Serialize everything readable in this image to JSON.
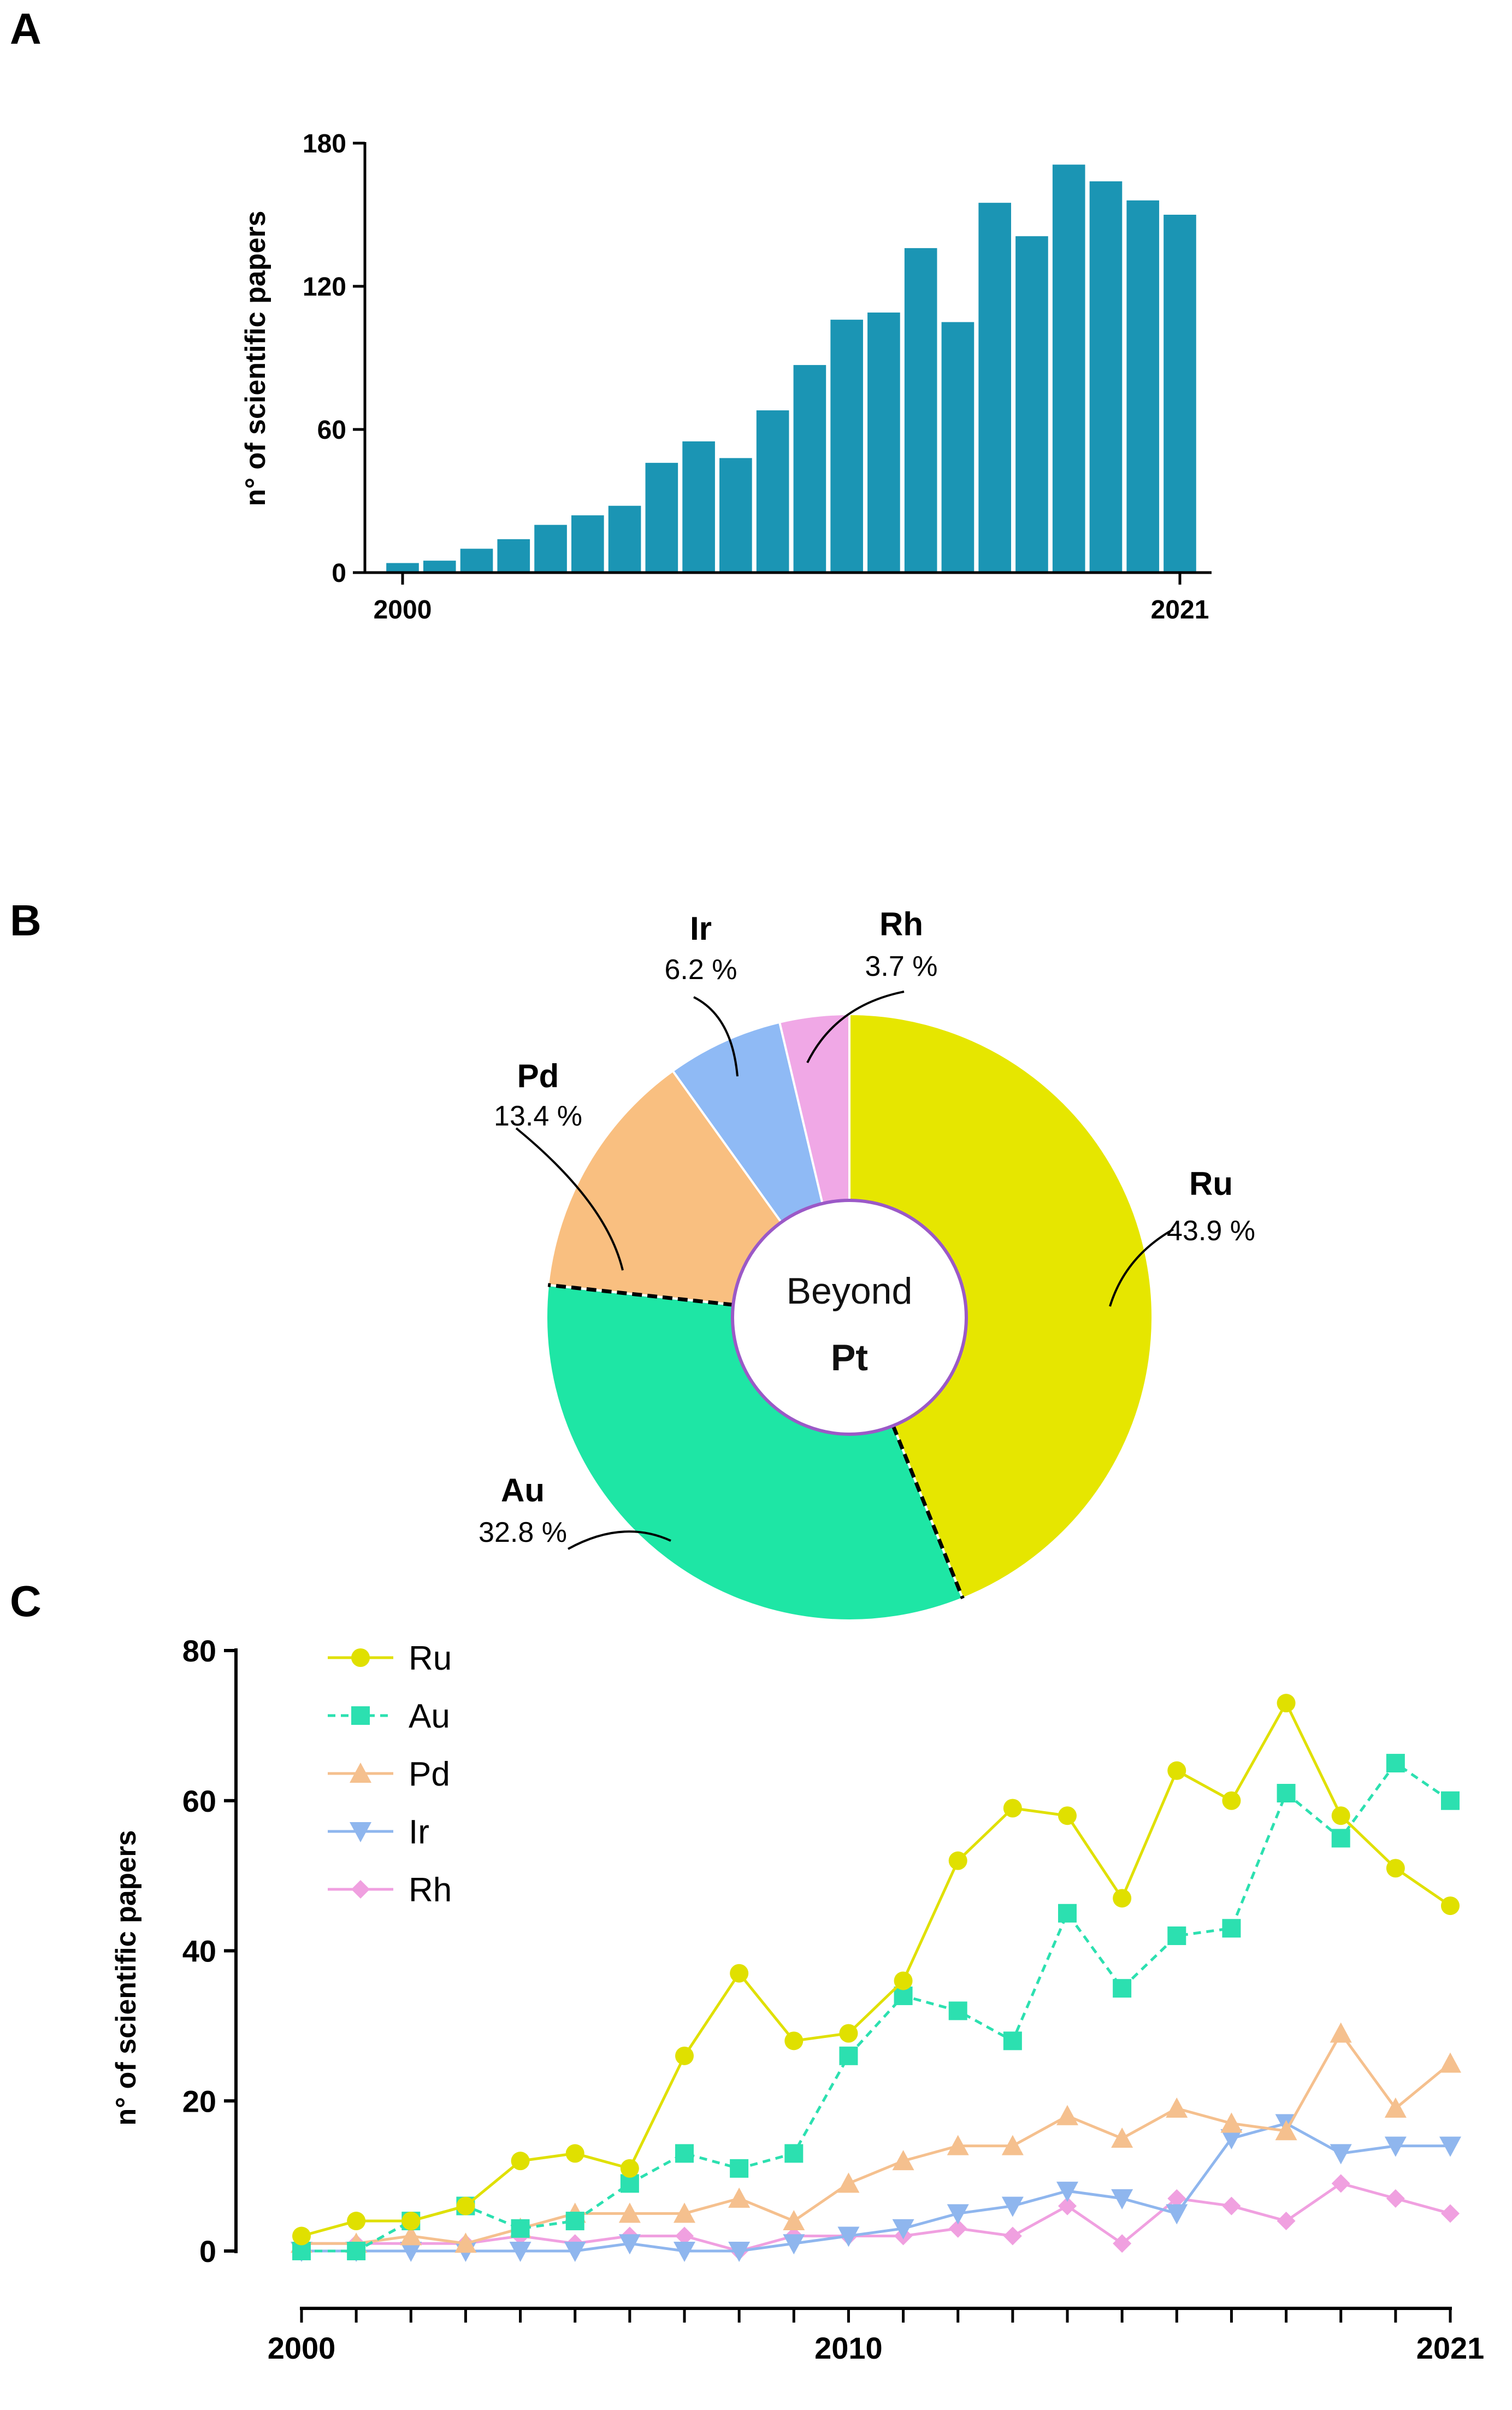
{
  "panels": {
    "a": "A",
    "b": "B",
    "c": "C"
  },
  "chart_data": [
    {
      "type": "bar",
      "ylabel": "n° of scientific papers",
      "ylim": [
        0,
        180
      ],
      "yticks": [
        "0",
        "60",
        "120",
        "180"
      ],
      "xtick_labels": [
        "2000",
        "2021"
      ],
      "categories": [
        2000,
        2001,
        2002,
        2003,
        2004,
        2005,
        2006,
        2007,
        2008,
        2009,
        2010,
        2011,
        2012,
        2013,
        2014,
        2015,
        2016,
        2017,
        2018,
        2019,
        2020,
        2021
      ],
      "values": [
        4,
        5,
        10,
        14,
        20,
        24,
        28,
        46,
        55,
        48,
        68,
        87,
        106,
        109,
        136,
        105,
        155,
        141,
        171,
        164,
        156,
        150
      ],
      "color": "#1b95b4"
    },
    {
      "type": "pie",
      "center_text": "Beyond",
      "center_text_bold": "Pt",
      "slices": [
        {
          "name": "Ru",
          "pct_label": "43.9 %",
          "value": 43.9,
          "color": "#e6e600"
        },
        {
          "name": "Au",
          "pct_label": "32.8 %",
          "value": 32.8,
          "color": "#1ee6a5"
        },
        {
          "name": "Pd",
          "pct_label": "13.4 %",
          "value": 13.4,
          "color": "#f9bf80"
        },
        {
          "name": "Ir",
          "pct_label": "6.2 %",
          "value": 6.2,
          "color": "#8fbaf5"
        },
        {
          "name": "Rh",
          "pct_label": "3.7 %",
          "value": 3.7,
          "color": "#f0a8e6"
        }
      ],
      "ring_color": "#9b59c7"
    },
    {
      "type": "line",
      "ylabel": "n° of scientific papers",
      "ylim": [
        0,
        80
      ],
      "yticks": [
        "0",
        "20",
        "40",
        "60",
        "80"
      ],
      "xtick_labels": [
        "2000",
        "2010",
        "2021"
      ],
      "x": [
        2000,
        2001,
        2002,
        2003,
        2004,
        2005,
        2006,
        2007,
        2008,
        2009,
        2010,
        2011,
        2012,
        2013,
        2014,
        2015,
        2016,
        2017,
        2018,
        2019,
        2020,
        2021
      ],
      "series": [
        {
          "name": "Ru",
          "color": "#e0e000",
          "marker": "circle",
          "dashed": false,
          "values": [
            2,
            4,
            4,
            6,
            12,
            13,
            11,
            26,
            37,
            28,
            29,
            36,
            52,
            59,
            58,
            47,
            64,
            60,
            73,
            58,
            51,
            46
          ]
        },
        {
          "name": "Au",
          "color": "#2ce0b0",
          "marker": "square",
          "dashed": true,
          "values": [
            0,
            0,
            4,
            6,
            3,
            4,
            9,
            13,
            11,
            13,
            26,
            34,
            32,
            28,
            45,
            35,
            42,
            43,
            61,
            55,
            65,
            60
          ]
        },
        {
          "name": "Pd",
          "color": "#f5c08e",
          "marker": "triangle-up",
          "dashed": false,
          "values": [
            1,
            1,
            2,
            1,
            3,
            5,
            5,
            5,
            7,
            4,
            9,
            12,
            14,
            14,
            18,
            15,
            19,
            17,
            16,
            29,
            19,
            25
          ]
        },
        {
          "name": "Ir",
          "color": "#8fb6ee",
          "marker": "triangle-down",
          "dashed": false,
          "values": [
            0,
            0,
            0,
            0,
            0,
            0,
            1,
            0,
            0,
            1,
            2,
            3,
            5,
            6,
            8,
            7,
            5,
            15,
            17,
            13,
            14,
            14
          ]
        },
        {
          "name": "Rh",
          "color": "#f0a0e0",
          "marker": "diamond",
          "dashed": false,
          "values": [
            1,
            1,
            1,
            1,
            2,
            1,
            2,
            2,
            0,
            2,
            2,
            2,
            3,
            2,
            6,
            1,
            7,
            6,
            4,
            9,
            7,
            5
          ]
        }
      ]
    }
  ]
}
